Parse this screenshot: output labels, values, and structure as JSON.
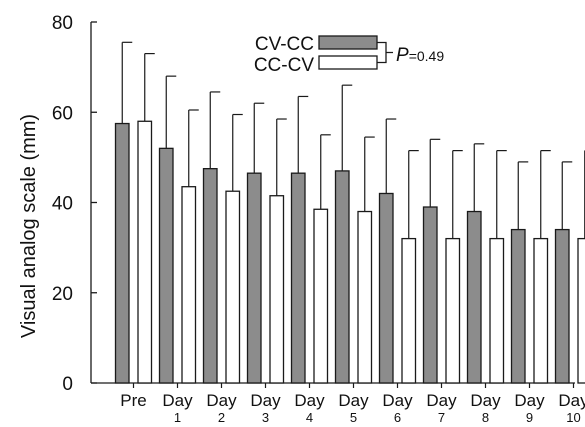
{
  "chart_data": {
    "type": "bar",
    "ylabel": "Visual analog scale (mm)",
    "ylim": [
      0,
      80
    ],
    "yticks": [
      0,
      20,
      40,
      60,
      80
    ],
    "grid": false,
    "error_bars": "upper only",
    "categories": [
      {
        "top": "Pre",
        "bottom": ""
      },
      {
        "top": "Day",
        "bottom": "1"
      },
      {
        "top": "Day",
        "bottom": "2"
      },
      {
        "top": "Day",
        "bottom": "3"
      },
      {
        "top": "Day",
        "bottom": "4"
      },
      {
        "top": "Day",
        "bottom": "5"
      },
      {
        "top": "Day",
        "bottom": "6"
      },
      {
        "top": "Day",
        "bottom": "7"
      },
      {
        "top": "Day",
        "bottom": "8"
      },
      {
        "top": "Day",
        "bottom": "9"
      },
      {
        "top": "Day",
        "bottom": "10"
      }
    ],
    "series": [
      {
        "name": "CV-CC",
        "color": "#8c8c8c",
        "values": [
          57.5,
          52,
          47.5,
          46.5,
          46.5,
          47,
          42,
          39,
          38,
          34,
          34
        ],
        "error_top": [
          75.5,
          68,
          64.5,
          62,
          63.5,
          66,
          58.5,
          54,
          53,
          49,
          49
        ]
      },
      {
        "name": "CC-CV",
        "color": "#ffffff",
        "values": [
          58,
          43.5,
          42.5,
          41.5,
          38.5,
          38,
          32,
          32,
          32,
          32,
          32
        ],
        "error_top": [
          73,
          60.5,
          59.5,
          58.5,
          55,
          54.5,
          51.5,
          51.5,
          51.5,
          51.5,
          51.5
        ]
      }
    ],
    "legend": {
      "placement": "top-center",
      "p_label": "P",
      "p_value": "=0.49"
    }
  }
}
